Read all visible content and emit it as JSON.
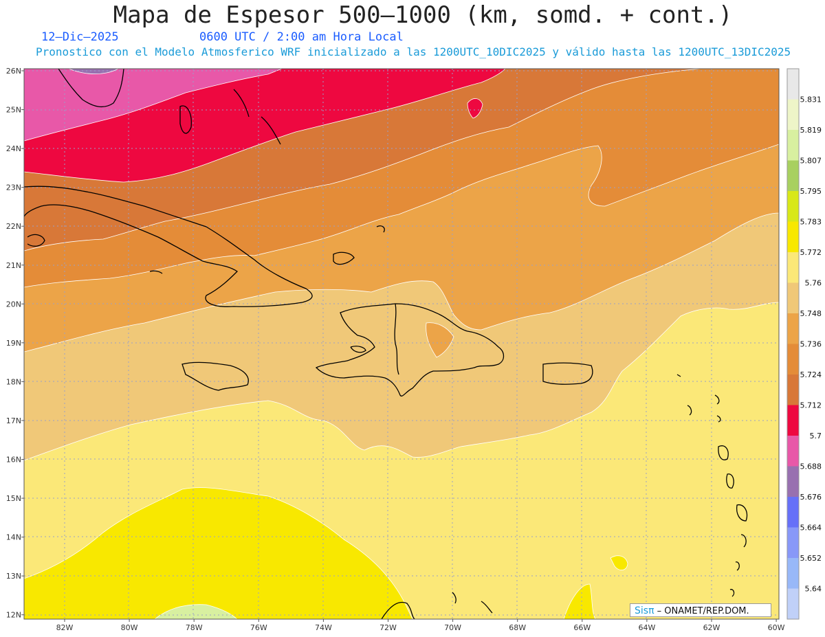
{
  "title": "Mapa de Espesor 500–1000 (km, somd. + cont.)",
  "date_label": "12–Dic–2025",
  "time_label": "0600 UTC / 2:00 am Hora Local",
  "run_info": "Pronostico con el Modelo Atmosferico WRF inicializado a las 1200UTC_10DIC2025 y válido hasta las  1200UTC_13DIC2025",
  "credit": {
    "brand": "Sisπ",
    "text": "– ONAMET/REP.DOM."
  },
  "axes": {
    "lat_ticks": [
      "26N",
      "25N",
      "24N",
      "23N",
      "22N",
      "21N",
      "20N",
      "19N",
      "18N",
      "17N",
      "16N",
      "15N",
      "14N",
      "13N",
      "12N"
    ],
    "lon_ticks": [
      "82W",
      "80W",
      "78W",
      "76W",
      "74W",
      "72W",
      "70W",
      "68W",
      "66W",
      "64W",
      "62W",
      "60W"
    ],
    "lat_range": [
      11.9,
      26.1
    ],
    "lon_range": [
      -83.2,
      -59.9
    ]
  },
  "colorbar": {
    "labels": [
      "5.831",
      "5.819",
      "5.807",
      "5.795",
      "5.783",
      "5.772",
      "5.76",
      "5.748",
      "5.736",
      "5.724",
      "5.712",
      "5.7",
      "5.688",
      "5.676",
      "5.664",
      "5.652",
      "5.64"
    ],
    "colors": [
      "#e8e8e8",
      "#eef5c8",
      "#d8f0a0",
      "#a8d060",
      "#d8e818",
      "#f8e800",
      "#fbe878",
      "#f0c878",
      "#eca448",
      "#e48c38",
      "#d87838",
      "#ee0840",
      "#e858a8",
      "#9870b0",
      "#6670f8",
      "#8898f8",
      "#98b8f8",
      "#c0d0f8"
    ]
  },
  "map_layers": {
    "legend_units": "km"
  }
}
